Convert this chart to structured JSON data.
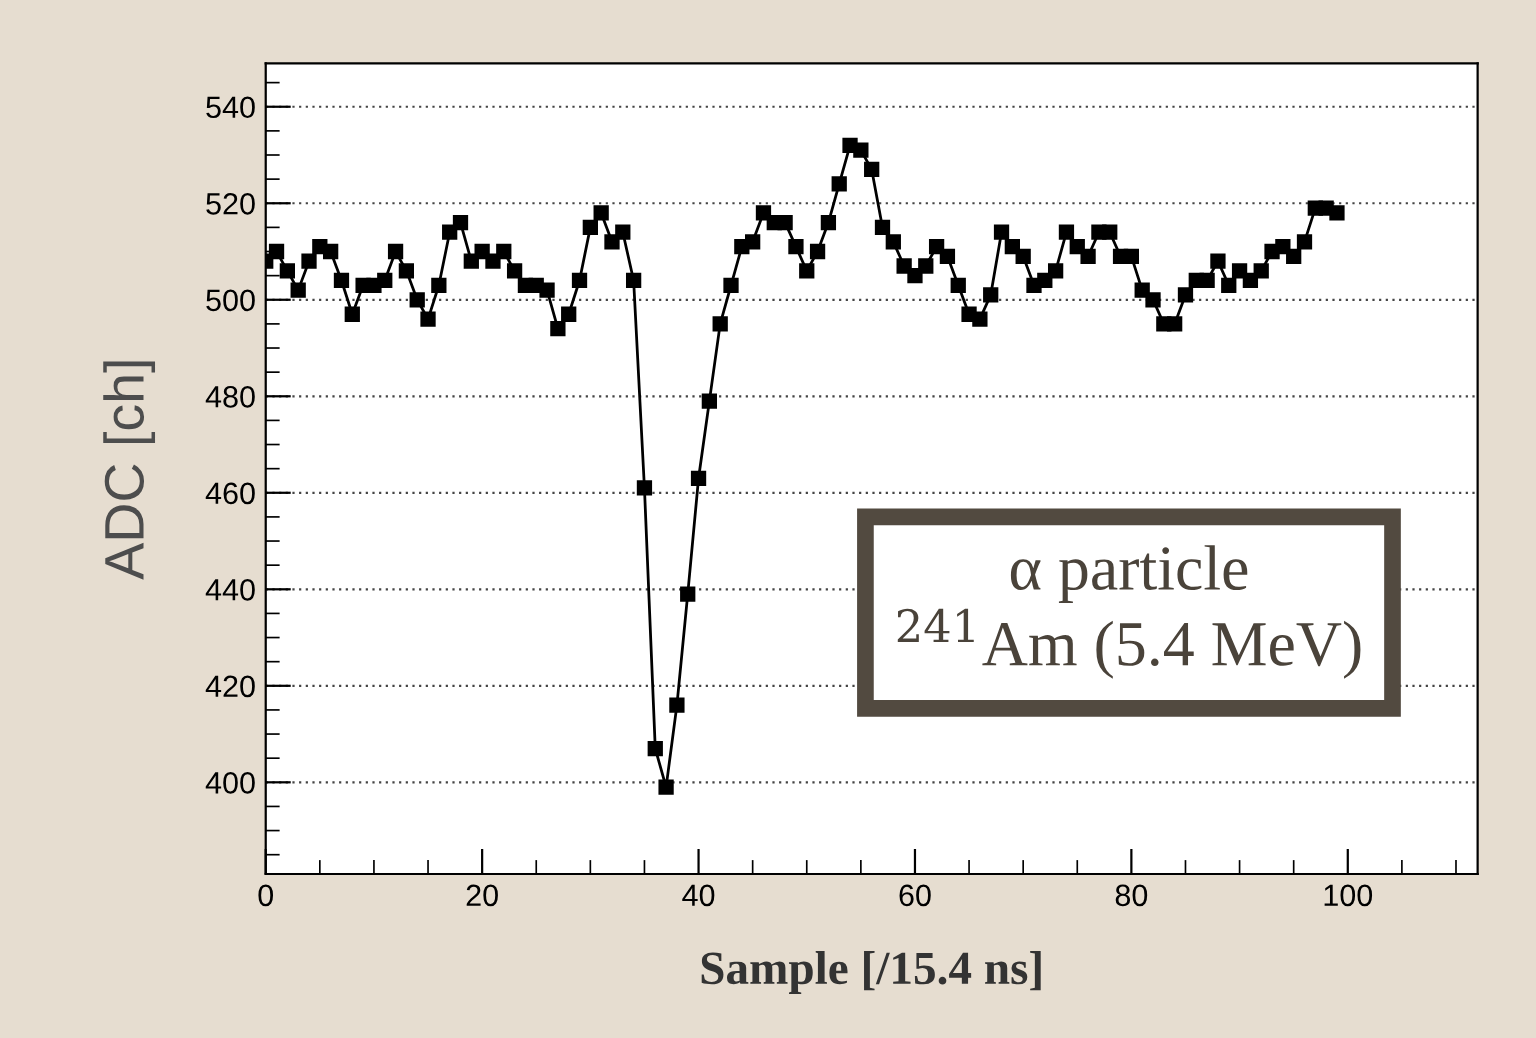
{
  "chart_data": {
    "type": "line",
    "xlabel": "Sample [/15.4 ns]",
    "ylabel": "ADC [ch]",
    "x": [
      0,
      1,
      2,
      3,
      4,
      5,
      6,
      7,
      8,
      9,
      10,
      11,
      12,
      13,
      14,
      15,
      16,
      17,
      18,
      19,
      20,
      21,
      22,
      23,
      24,
      25,
      26,
      27,
      28,
      29,
      30,
      31,
      32,
      33,
      34,
      35,
      36,
      37,
      38,
      39,
      40,
      41,
      42,
      43,
      44,
      45,
      46,
      47,
      48,
      49,
      50,
      51,
      52,
      53,
      54,
      55,
      56,
      57,
      58,
      59,
      60,
      61,
      62,
      63,
      64,
      65,
      66,
      67,
      68,
      69,
      70,
      71,
      72,
      73,
      74,
      75,
      76,
      77,
      78,
      79,
      80,
      81,
      82,
      83,
      84,
      85,
      86,
      87,
      88,
      89,
      90,
      91,
      92,
      93,
      94,
      95,
      96,
      97,
      98,
      99
    ],
    "series": [
      {
        "color": "#000000",
        "values": [
          508,
          510,
          506,
          502,
          508,
          511,
          510,
          504,
          497,
          503,
          503,
          504,
          510,
          506,
          500,
          496,
          503,
          514,
          516,
          508,
          510,
          508,
          510,
          506,
          503,
          503,
          502,
          494,
          497,
          504,
          515,
          518,
          512,
          514,
          504,
          461,
          407,
          399,
          416,
          439,
          463,
          479,
          495,
          503,
          511,
          512,
          518,
          516,
          516,
          511,
          506,
          510,
          516,
          524,
          532,
          531,
          527,
          515,
          512,
          507,
          505,
          507,
          511,
          509,
          503,
          497,
          496,
          501,
          514,
          511,
          509,
          503,
          504,
          506,
          514,
          511,
          509,
          514,
          514,
          509,
          509,
          502,
          500,
          495,
          495,
          501,
          504,
          504,
          508,
          503,
          506,
          504,
          506,
          510,
          511,
          509,
          512,
          519,
          519,
          518
        ]
      }
    ],
    "xlim": [
      0,
      112
    ],
    "ylim": [
      381,
      549
    ],
    "xticks": [
      0,
      20,
      40,
      60,
      80,
      100
    ],
    "yticks": [
      400,
      420,
      440,
      460,
      480,
      500,
      520,
      540
    ],
    "grid": "y",
    "marker": "square",
    "line_style": "solid",
    "annotations": [
      "α particle\n$^{241}$Am (5.4 MeV)"
    ]
  }
}
